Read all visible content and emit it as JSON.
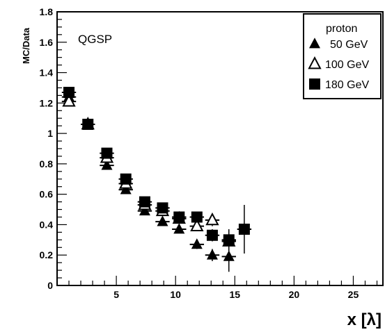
{
  "chart_data": {
    "type": "scatter",
    "title": "",
    "annotation": "QGSP",
    "xlabel": "x [λ]",
    "ylabel": "MC/Data",
    "xlim": [
      0,
      27.5
    ],
    "ylim": [
      0,
      1.8
    ],
    "x_ticks": [
      5,
      10,
      15,
      20,
      25
    ],
    "y_ticks": [
      0,
      0.2,
      0.4,
      0.6,
      0.8,
      1,
      1.2,
      1.4,
      1.6,
      1.8
    ],
    "x_tick_labels": [
      "5",
      "10",
      "15",
      "20",
      "25"
    ],
    "y_tick_labels": [
      "0",
      "0.2",
      "0.4",
      "0.6",
      "0.8",
      "1",
      "1.2",
      "1.4",
      "1.6",
      "1.8"
    ],
    "grid": false,
    "legend_position": "top-right",
    "legend_title": "proton",
    "series": [
      {
        "name": "50 GeV",
        "marker": "triangle-filled",
        "x": [
          1.0,
          2.6,
          4.2,
          5.8,
          7.4,
          8.9,
          10.3,
          11.8,
          13.1,
          14.5
        ],
        "y": [
          1.24,
          1.06,
          0.79,
          0.63,
          0.49,
          0.42,
          0.37,
          0.27,
          0.2,
          0.19
        ],
        "yerr": [
          0.02,
          0.02,
          0.02,
          0.02,
          0.02,
          0.02,
          0.02,
          0.03,
          0.04,
          0.1
        ]
      },
      {
        "name": "100 GeV",
        "marker": "triangle-open",
        "x": [
          1.0,
          2.6,
          4.2,
          5.8,
          7.4,
          8.9,
          10.3,
          11.8,
          13.1,
          14.5
        ],
        "y": [
          1.21,
          1.06,
          0.84,
          0.67,
          0.53,
          0.49,
          0.44,
          0.39,
          0.43,
          0.29
        ],
        "yerr": [
          0.02,
          0.02,
          0.02,
          0.02,
          0.02,
          0.02,
          0.02,
          0.03,
          0.04,
          0.05
        ]
      },
      {
        "name": "180 GeV",
        "marker": "square-filled",
        "x": [
          1.0,
          2.6,
          4.2,
          5.8,
          7.4,
          8.9,
          10.3,
          11.8,
          13.1,
          14.5,
          15.8
        ],
        "y": [
          1.27,
          1.06,
          0.87,
          0.7,
          0.55,
          0.51,
          0.45,
          0.45,
          0.33,
          0.3,
          0.37
        ],
        "yerr": [
          0.02,
          0.02,
          0.02,
          0.02,
          0.02,
          0.02,
          0.02,
          0.03,
          0.04,
          0.07,
          0.16
        ]
      }
    ]
  }
}
